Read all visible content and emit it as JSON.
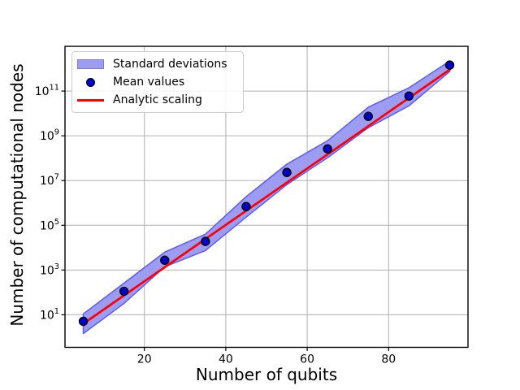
{
  "chart_data": {
    "type": "line",
    "title": "",
    "xlabel": "Number of qubits",
    "ylabel": "Number of computational nodes",
    "x": [
      5,
      15,
      25,
      35,
      45,
      55,
      65,
      75,
      85,
      95
    ],
    "series": [
      {
        "name": "Standard deviations",
        "kind": "band",
        "upper": [
          11,
          260,
          6300,
          40000,
          1900000,
          54000000,
          600000000,
          19000000000,
          140000000000,
          2200000000000
        ],
        "lower": [
          1.45,
          32,
          1400,
          7400,
          230000,
          6600000,
          105000000,
          2300000000,
          22000000000,
          740000000000
        ]
      },
      {
        "name": "Mean values",
        "kind": "scatter",
        "values": [
          5.1,
          112,
          2750,
          19000,
          690000,
          23000000,
          260000000,
          7400000000,
          60000000000,
          1450000000000
        ]
      },
      {
        "name": "Analytic scaling",
        "kind": "line",
        "x": [
          5,
          95
        ],
        "values": [
          4.0,
          900000000000
        ]
      }
    ],
    "xlim": [
      0.5,
      99.5
    ],
    "ylim": [
      0.35,
      10000000000000.0
    ],
    "yscale": "log",
    "x_ticks": [
      20,
      40,
      60,
      80
    ],
    "y_tick_exponents": [
      11,
      9,
      7,
      5,
      3,
      1
    ],
    "grid": true,
    "legend_position": "upper left",
    "colors": {
      "band_fill": "#9c9cf2",
      "band_edge": "#5c5cf0",
      "marker_fill": "#0000cd",
      "marker_edge": "#000000",
      "line": "#ff0000",
      "grid": "#b0b0b0",
      "frame": "#000000",
      "legend_border": "#cccccc",
      "legend_patch_border": "#7a7ad8"
    }
  }
}
